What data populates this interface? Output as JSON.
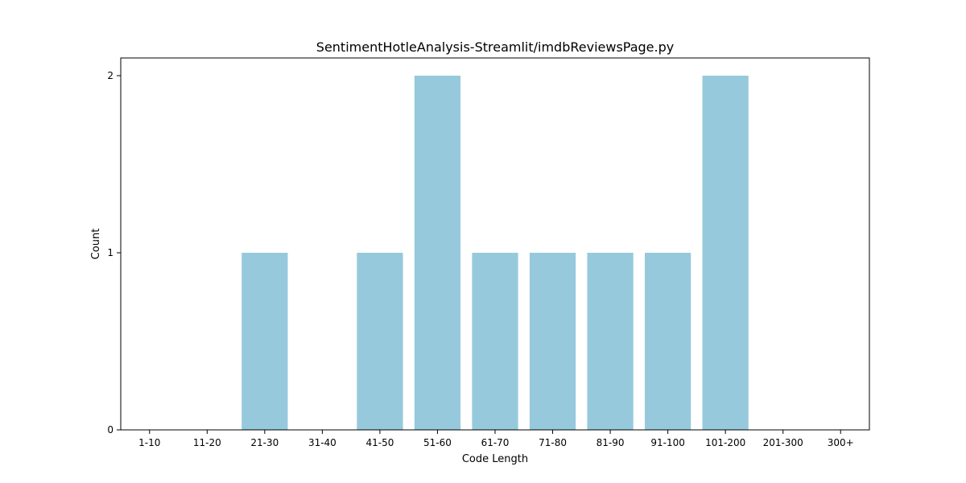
{
  "chart_data": {
    "type": "bar",
    "title": "SentimentHotleAnalysis-Streamlit/imdbReviewsPage.py",
    "xlabel": "Code Length",
    "ylabel": "Count",
    "categories": [
      "1-10",
      "11-20",
      "21-30",
      "31-40",
      "41-50",
      "51-60",
      "61-70",
      "71-80",
      "81-90",
      "91-100",
      "101-200",
      "201-300",
      "300+"
    ],
    "values": [
      0,
      0,
      1,
      0,
      1,
      2,
      1,
      1,
      1,
      1,
      2,
      0,
      0
    ],
    "ylim": [
      0,
      2.1
    ],
    "yticks": [
      0,
      1,
      2
    ],
    "bar_color": "#96c9dc",
    "grid": false,
    "legend": "none"
  }
}
